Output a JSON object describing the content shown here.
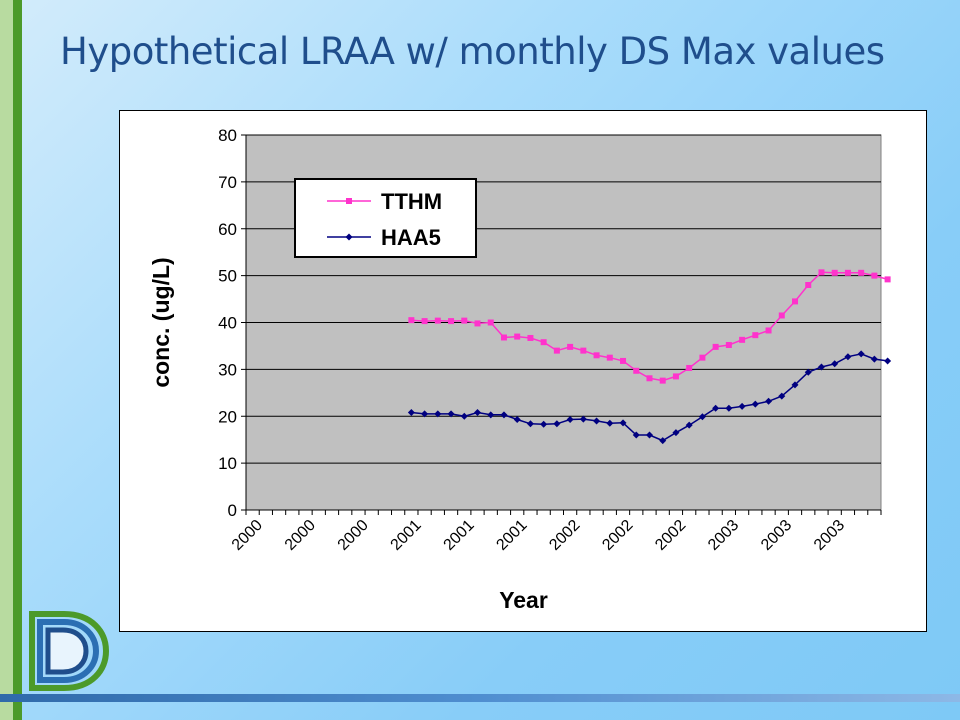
{
  "slide": {
    "title": "Hypothetical LRAA w/ monthly DS Max values"
  },
  "logo": {
    "icon": "d-logo-icon"
  },
  "colors": {
    "accent_green": "#4c9a2a",
    "title_blue": "#1f4e8c",
    "tthm_color": "#ff33cc",
    "haa5_color": "#000080",
    "plot_bg": "#c0c0c0"
  },
  "chart_data": {
    "type": "line",
    "title": "",
    "xlabel": "Year",
    "ylabel": "conc. (ug/L)",
    "ylim": [
      0,
      80
    ],
    "yticks": [
      0,
      10,
      20,
      30,
      40,
      50,
      60,
      70,
      80
    ],
    "grid": true,
    "legend_position": "top-left",
    "x_tick_labels": [
      "2000",
      "2000",
      "2000",
      "2001",
      "2001",
      "2001",
      "2002",
      "2002",
      "2002",
      "2003",
      "2003",
      "2003"
    ],
    "series": [
      {
        "name": "TTHM",
        "color": "#ff33cc",
        "marker": "square",
        "start_month_index": 12,
        "values": [
          40.5,
          40.3,
          40.4,
          40.3,
          40.4,
          39.8,
          40.0,
          36.8,
          37.0,
          36.7,
          35.8,
          34.0,
          34.8,
          34.0,
          33.0,
          32.5,
          31.8,
          29.7,
          28.1,
          27.6,
          28.5,
          30.3,
          32.5,
          34.8,
          35.2,
          36.3,
          37.3,
          38.3,
          41.5,
          44.5,
          48.0,
          50.7,
          50.6,
          50.6,
          50.6,
          50.0,
          49.2
        ]
      },
      {
        "name": "HAA5",
        "color": "#000080",
        "marker": "diamond",
        "start_month_index": 12,
        "values": [
          20.8,
          20.5,
          20.5,
          20.5,
          20.0,
          20.8,
          20.3,
          20.3,
          19.3,
          18.4,
          18.3,
          18.4,
          19.3,
          19.4,
          19.0,
          18.5,
          18.6,
          16.0,
          16.0,
          14.8,
          16.5,
          18.1,
          19.9,
          21.7,
          21.7,
          22.1,
          22.6,
          23.2,
          24.3,
          26.7,
          29.4,
          30.5,
          31.2,
          32.7,
          33.3,
          32.2,
          31.8
        ]
      }
    ]
  }
}
